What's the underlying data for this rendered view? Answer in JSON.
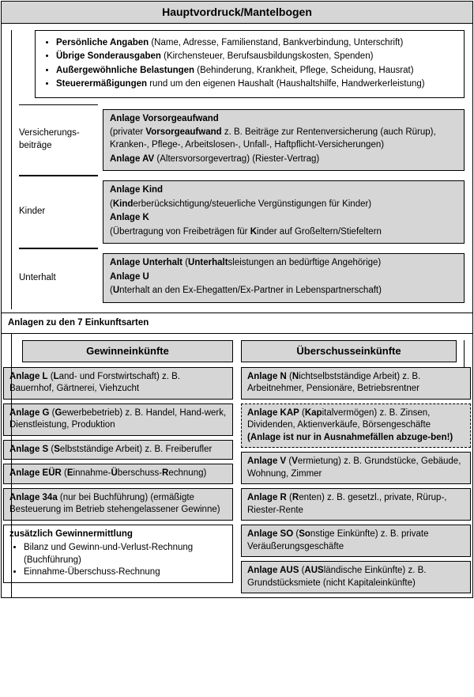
{
  "header": "Hauptvordruck/Mantelbogen",
  "bullets": [
    {
      "b": "Persönliche Angaben",
      "rest": " (Name, Adresse, Familienstand, Bankverbindung, Unterschrift)"
    },
    {
      "b": "Übrige Sonderausgaben",
      "rest": " (Kirchensteuer, Berufsausbildungskosten, Spenden)"
    },
    {
      "b": "Außergewöhnliche Belastungen",
      "rest": " (Behinderung, Krankheit, Pflege, Scheidung, Hausrat)"
    },
    {
      "b": "Steuerermäßigungen",
      "rest": " rund um den eigenen Haushalt (Haushaltshilfe, Handwerkerleistung)"
    }
  ],
  "rows": [
    {
      "label": "Versicherungs-beiträge",
      "lines": [
        {
          "b": "Anlage Vorsorgeaufwand",
          "rest": ""
        },
        {
          "b": "",
          "rest": "(privater ",
          "b2": "Vorsorgeaufwand",
          "rest2": " z. B. Beiträge zur Rentenversicherung (auch Rürup), Kranken-, Pflege-, Arbeitslosen-, Unfall-, Haftpflicht-Versicherungen)"
        },
        {
          "b": "Anlage AV",
          "rest": " (Altersvorsorgevertrag) (Riester-Vertrag)"
        }
      ]
    },
    {
      "label": "Kinder",
      "lines": [
        {
          "b": "Anlage Kind",
          "rest": ""
        },
        {
          "b": "",
          "rest": "(",
          "b2": "Kind",
          "rest2": "erberücksichtigung/steuerliche Vergünstigungen für Kinder)"
        },
        {
          "b": "Anlage K",
          "rest": ""
        },
        {
          "b": "",
          "rest": "(Übertragung von Freibeträgen für ",
          "b2": "K",
          "rest2": "inder auf Großeltern/Stiefeltern"
        }
      ]
    },
    {
      "label": "Unterhalt",
      "lines": [
        {
          "b": "Anlage Unterhalt",
          "rest": " (",
          "b2": "Unterhalt",
          "rest2": "sleistungen an bedürftige Angehörige)"
        },
        {
          "b": "Anlage U",
          "rest": ""
        },
        {
          "b": "",
          "rest": "(",
          "b2": "U",
          "rest2": "nterhalt an den Ex-Ehegatten/Ex-Partner in Lebenspartnerschaft)"
        }
      ]
    }
  ],
  "section2": "Anlagen zu den 7 Einkunftsarten",
  "left_header": "Gewinneinkünfte",
  "right_header": "Überschusseinkünfte",
  "left": [
    {
      "html": [
        {
          "b": "Anlage L"
        },
        {
          "t": " ("
        },
        {
          "b": "L"
        },
        {
          "t": "and- und Forstwirtschaft) z. B. Bauernhof, Gärtnerei, Viehzucht"
        }
      ]
    },
    {
      "html": [
        {
          "b": "Anlage G"
        },
        {
          "t": " ("
        },
        {
          "b": "G"
        },
        {
          "t": "ewerbebetrieb) z. B. Handel, Hand-werk, Dienstleistung, Produktion"
        }
      ]
    },
    {
      "html": [
        {
          "b": "Anlage S"
        },
        {
          "t": " ("
        },
        {
          "b": "S"
        },
        {
          "t": "elbstständige Arbeit) z. B. Freiberufler"
        }
      ]
    },
    {
      "html": [
        {
          "b": "Anlage EÜR"
        },
        {
          "t": " ("
        },
        {
          "b": "E"
        },
        {
          "t": "innahme-"
        },
        {
          "b": "Ü"
        },
        {
          "t": "berschuss-"
        },
        {
          "b": "R"
        },
        {
          "t": "echnung)"
        }
      ]
    },
    {
      "html": [
        {
          "b": "Anlage 34a"
        },
        {
          "t": " (nur bei Buchführung) (ermäßigte Besteuerung im Betrieb stehengelassener Gewinne)"
        }
      ]
    }
  ],
  "left_extra_title": "zusätzlich Gewinnermittlung",
  "left_extra_items": [
    "Bilanz und Gewinn-und-Verlust-Rechnung (Buchführung)",
    "Einnahme-Überschuss-Rechnung"
  ],
  "right": [
    {
      "dashed": false,
      "html": [
        {
          "b": "Anlage N"
        },
        {
          "t": " ("
        },
        {
          "b": "N"
        },
        {
          "t": "ichtselbstständige Arbeit) z. B. Arbeitnehmer, Pensionäre, Betriebsrentner"
        }
      ]
    },
    {
      "dashed": true,
      "html": [
        {
          "b": "Anlage KAP"
        },
        {
          "t": " ("
        },
        {
          "b": "Kap"
        },
        {
          "t": "italvermögen) z. B. Zinsen, Dividenden, Aktienverkäufe, Börsengeschäfte "
        },
        {
          "b": "(Anlage ist nur in Ausnahmefällen abzuge-ben!)"
        }
      ]
    },
    {
      "dashed": false,
      "html": [
        {
          "b": "Anlage V"
        },
        {
          "t": " ("
        },
        {
          "b": "V"
        },
        {
          "t": "ermietung) z. B. Grundstücke, Gebäude, Wohnung, Zimmer"
        }
      ]
    },
    {
      "dashed": false,
      "html": [
        {
          "b": "Anlage R"
        },
        {
          "t": " ("
        },
        {
          "b": "R"
        },
        {
          "t": "enten) z. B. gesetzl., private, Rürup-, Riester-Rente"
        }
      ]
    },
    {
      "dashed": false,
      "html": [
        {
          "b": "Anlage SO"
        },
        {
          "t": " ("
        },
        {
          "b": "So"
        },
        {
          "t": "nstige Einkünfte) z. B. private Veräußerungsgeschäfte"
        }
      ]
    },
    {
      "dashed": false,
      "html": [
        {
          "b": "Anlage AUS"
        },
        {
          "t": " ("
        },
        {
          "b": "AUS"
        },
        {
          "t": "ländische Einkünfte) z. B. Grundstücksmiete (nicht Kapitaleinkünfte)"
        }
      ]
    }
  ]
}
